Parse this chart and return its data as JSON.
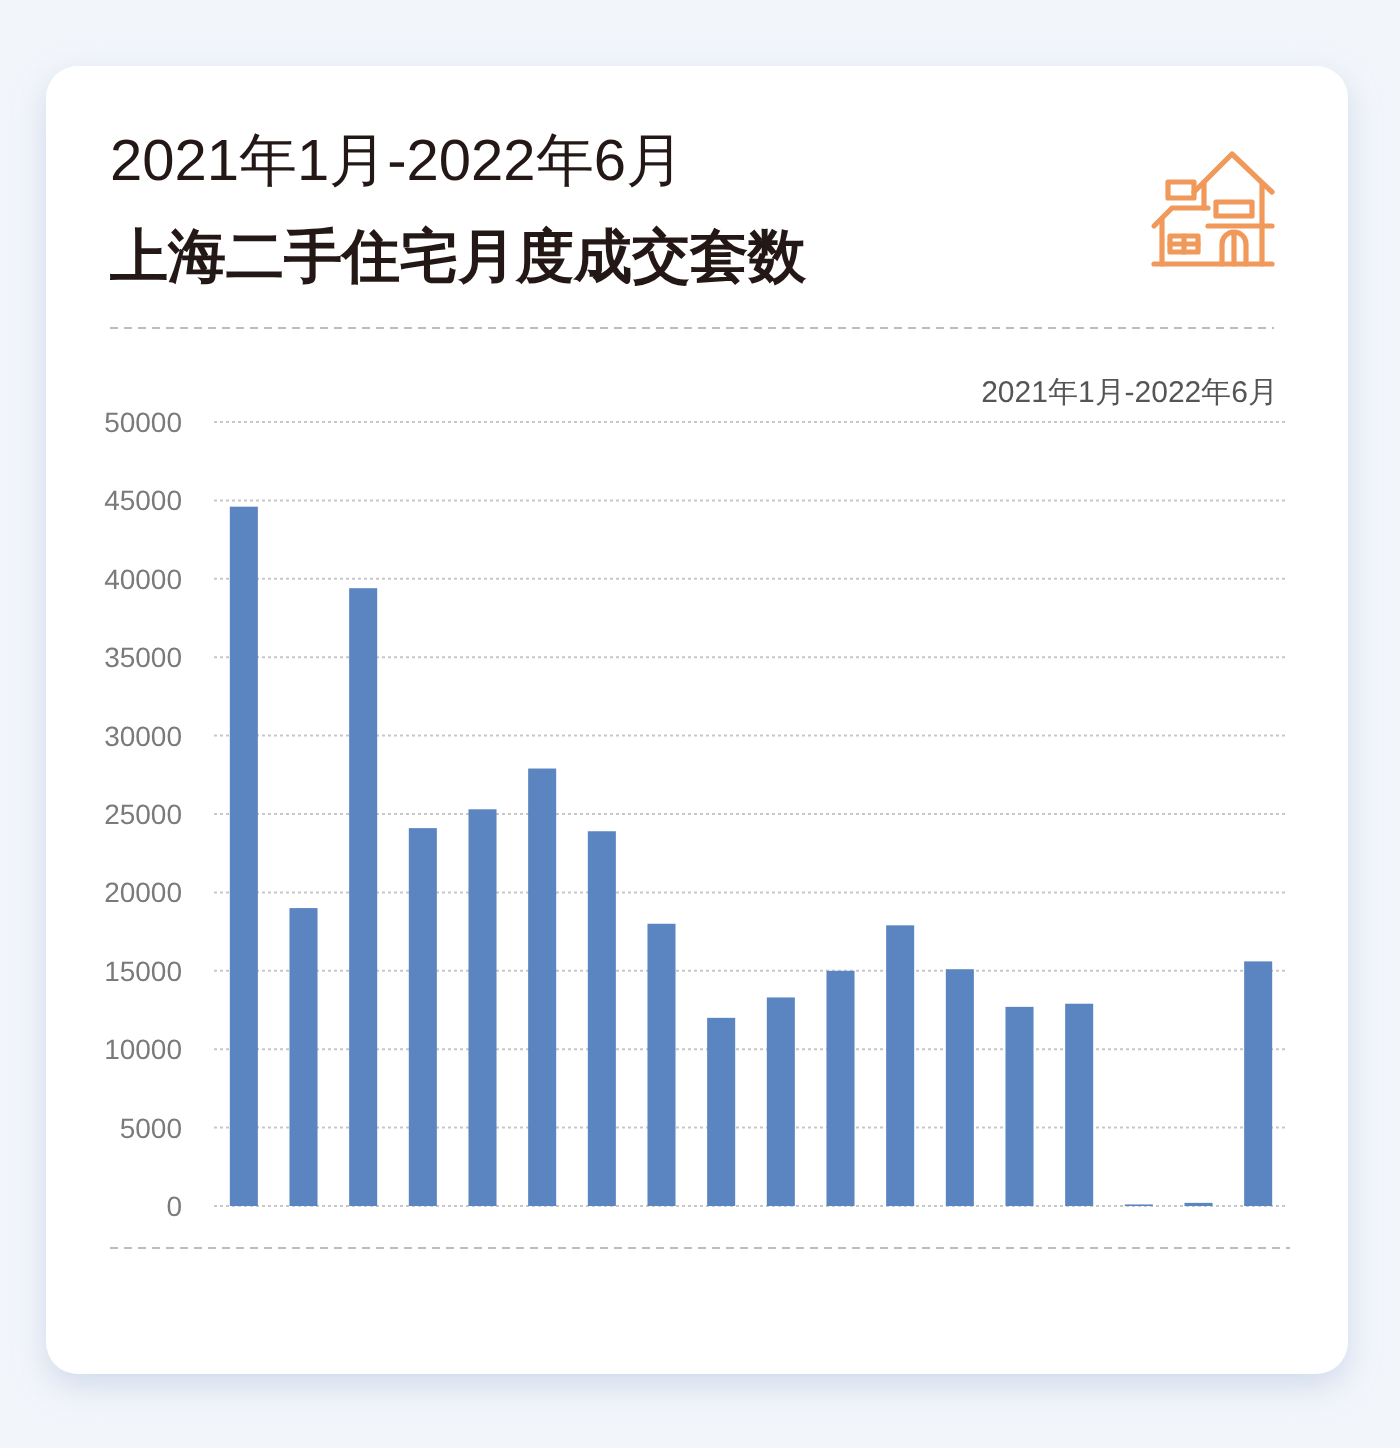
{
  "chart_data": {
    "type": "bar",
    "title": "上海二手住宅月度成交套数",
    "subtitle": "2021年1月-2022年6月",
    "annotations": [
      "2021年1月-2022年6月"
    ],
    "categories": [
      null,
      null,
      null,
      null,
      null,
      null,
      null,
      null,
      null,
      null,
      null,
      null,
      null,
      null,
      null,
      null,
      null,
      null
    ],
    "values": [
      44600,
      19000,
      39400,
      24100,
      25300,
      27900,
      23900,
      18000,
      12000,
      13300,
      15000,
      17900,
      15100,
      12700,
      12900,
      100,
      200,
      15600
    ],
    "color": "#5b85c1",
    "ylim": [
      0,
      50000
    ],
    "yticks": [
      0,
      5000,
      10000,
      15000,
      20000,
      25000,
      30000,
      35000,
      40000,
      45000,
      50000
    ],
    "grid": "y",
    "tick_labels": "y"
  }
}
